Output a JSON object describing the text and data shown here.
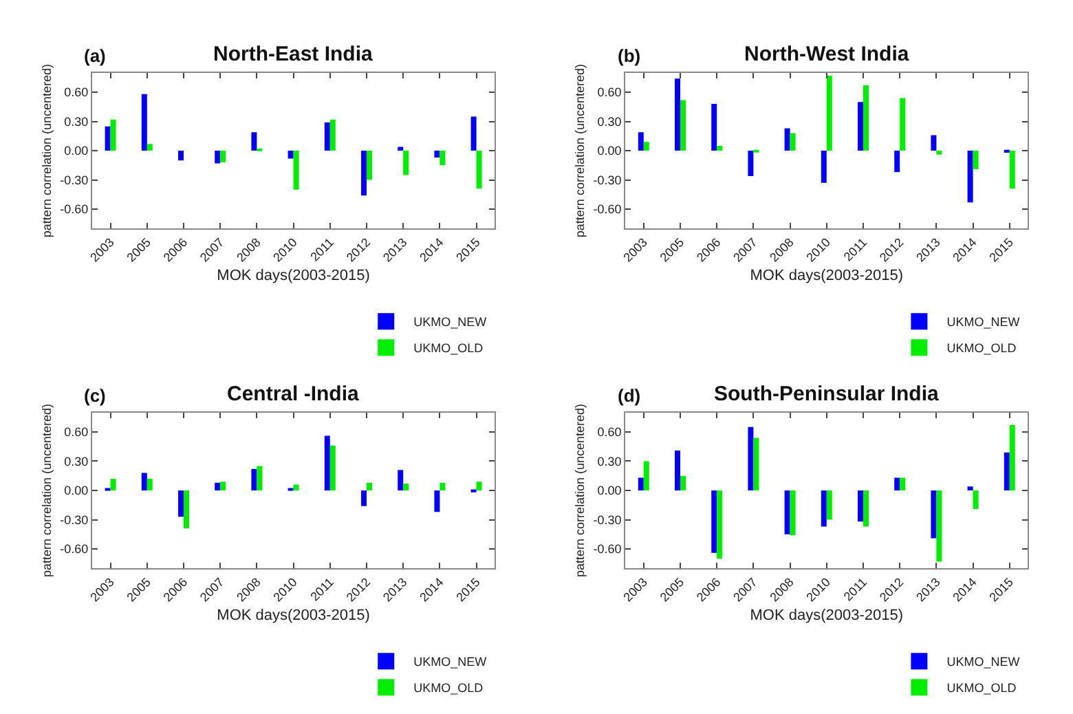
{
  "chart_data": [
    {
      "type": "bar",
      "title": "North-East India",
      "annotations": [
        "(a)"
      ],
      "xlabel": "MOK days(2003-2015)",
      "ylabel": "pattern correlation (uncentered)",
      "categories": [
        "2003",
        "2005",
        "2006",
        "2007",
        "2008",
        "2010",
        "2011",
        "2012",
        "2013",
        "2014",
        "2015"
      ],
      "series": [
        {
          "name": "UKMO_NEW",
          "color": "#0000ff",
          "values": [
            0.25,
            0.58,
            -0.1,
            -0.13,
            0.19,
            -0.08,
            0.29,
            -0.46,
            0.04,
            -0.07,
            0.35
          ]
        },
        {
          "name": "UKMO_OLD",
          "color": "#00ee00",
          "values": [
            0.32,
            0.07,
            0.0,
            -0.12,
            0.02,
            -0.4,
            0.32,
            -0.3,
            -0.25,
            -0.15,
            -0.39
          ]
        }
      ],
      "ylim": [
        -0.8,
        0.8
      ],
      "yticks": [
        {
          "value": -0.6,
          "label": "-0.60"
        },
        {
          "value": -0.3,
          "label": "-0.30"
        },
        {
          "value": 0,
          "label": "0.00"
        },
        {
          "value": 0.3,
          "label": "0.30"
        },
        {
          "value": 0.6,
          "label": "0.60"
        }
      ],
      "legend": "bottom right"
    },
    {
      "type": "bar",
      "title": "North-West India",
      "annotations": [
        "(b)"
      ],
      "xlabel": "MOK days(2003-2015)",
      "ylabel": "pattern correlation (uncentered)",
      "categories": [
        "2003",
        "2005",
        "2006",
        "2007",
        "2008",
        "2010",
        "2011",
        "2012",
        "2013",
        "2014",
        "2015"
      ],
      "series": [
        {
          "name": "UKMO_NEW",
          "color": "#0000ff",
          "values": [
            0.19,
            0.74,
            0.48,
            -0.26,
            0.23,
            -0.33,
            0.5,
            -0.22,
            0.16,
            -0.53,
            -0.02
          ]
        },
        {
          "name": "UKMO_OLD",
          "color": "#00ee00",
          "values": [
            0.09,
            0.52,
            0.05,
            -0.01,
            0.18,
            0.77,
            0.67,
            0.54,
            -0.04,
            -0.19,
            -0.39
          ]
        }
      ],
      "ylim": [
        -0.8,
        0.8
      ],
      "yticks": [
        {
          "value": -0.6,
          "label": "-0.60"
        },
        {
          "value": -0.3,
          "label": "-0.30"
        },
        {
          "value": 0,
          "label": "0.00"
        },
        {
          "value": 0.3,
          "label": "0.30"
        },
        {
          "value": 0.6,
          "label": "0.60"
        }
      ],
      "legend": "bottom right"
    },
    {
      "type": "bar",
      "title": "Central -India",
      "annotations": [
        "(c)"
      ],
      "xlabel": "MOK days(2003-2015)",
      "ylabel": "pattern correlation (uncentered)",
      "categories": [
        "2003",
        "2005",
        "2006",
        "2007",
        "2008",
        "2010",
        "2011",
        "2012",
        "2013",
        "2014",
        "2015"
      ],
      "series": [
        {
          "name": "UKMO_NEW",
          "color": "#0000ff",
          "values": [
            0.02,
            0.18,
            -0.27,
            0.08,
            0.22,
            0.02,
            0.56,
            -0.16,
            0.21,
            -0.22,
            -0.02
          ]
        },
        {
          "name": "UKMO_OLD",
          "color": "#00ee00",
          "values": [
            0.12,
            0.12,
            -0.39,
            0.09,
            0.25,
            0.06,
            0.46,
            0.08,
            0.07,
            0.08,
            0.09
          ]
        }
      ],
      "ylim": [
        -0.8,
        0.8
      ],
      "yticks": [
        {
          "value": -0.6,
          "label": "-0.60"
        },
        {
          "value": -0.3,
          "label": "-0.30"
        },
        {
          "value": 0,
          "label": "0.00"
        },
        {
          "value": 0.3,
          "label": "0.30"
        },
        {
          "value": 0.6,
          "label": "0.60"
        }
      ],
      "legend": "bottom right"
    },
    {
      "type": "bar",
      "title": "South-Peninsular India",
      "annotations": [
        "(d)"
      ],
      "xlabel": "MOK days(2003-2015)",
      "ylabel": "pattern correlation (uncentered)",
      "categories": [
        "2003",
        "2005",
        "2006",
        "2007",
        "2008",
        "2010",
        "2011",
        "2012",
        "2013",
        "2014",
        "2015"
      ],
      "series": [
        {
          "name": "UKMO_NEW",
          "color": "#0000ff",
          "values": [
            0.13,
            0.41,
            -0.64,
            0.65,
            -0.45,
            -0.37,
            -0.32,
            0.13,
            -0.49,
            0.04,
            0.39
          ]
        },
        {
          "name": "UKMO_OLD",
          "color": "#00ee00",
          "values": [
            0.3,
            0.15,
            -0.7,
            0.54,
            -0.46,
            -0.3,
            -0.37,
            0.13,
            -0.73,
            -0.19,
            0.67
          ]
        }
      ],
      "ylim": [
        -0.8,
        0.8
      ],
      "yticks": [
        {
          "value": -0.6,
          "label": "-0.60"
        },
        {
          "value": -0.3,
          "label": "-0.30"
        },
        {
          "value": 0,
          "label": "0.00"
        },
        {
          "value": 0.3,
          "label": "0.30"
        },
        {
          "value": 0.6,
          "label": "0.60"
        }
      ],
      "legend": "bottom right"
    }
  ]
}
